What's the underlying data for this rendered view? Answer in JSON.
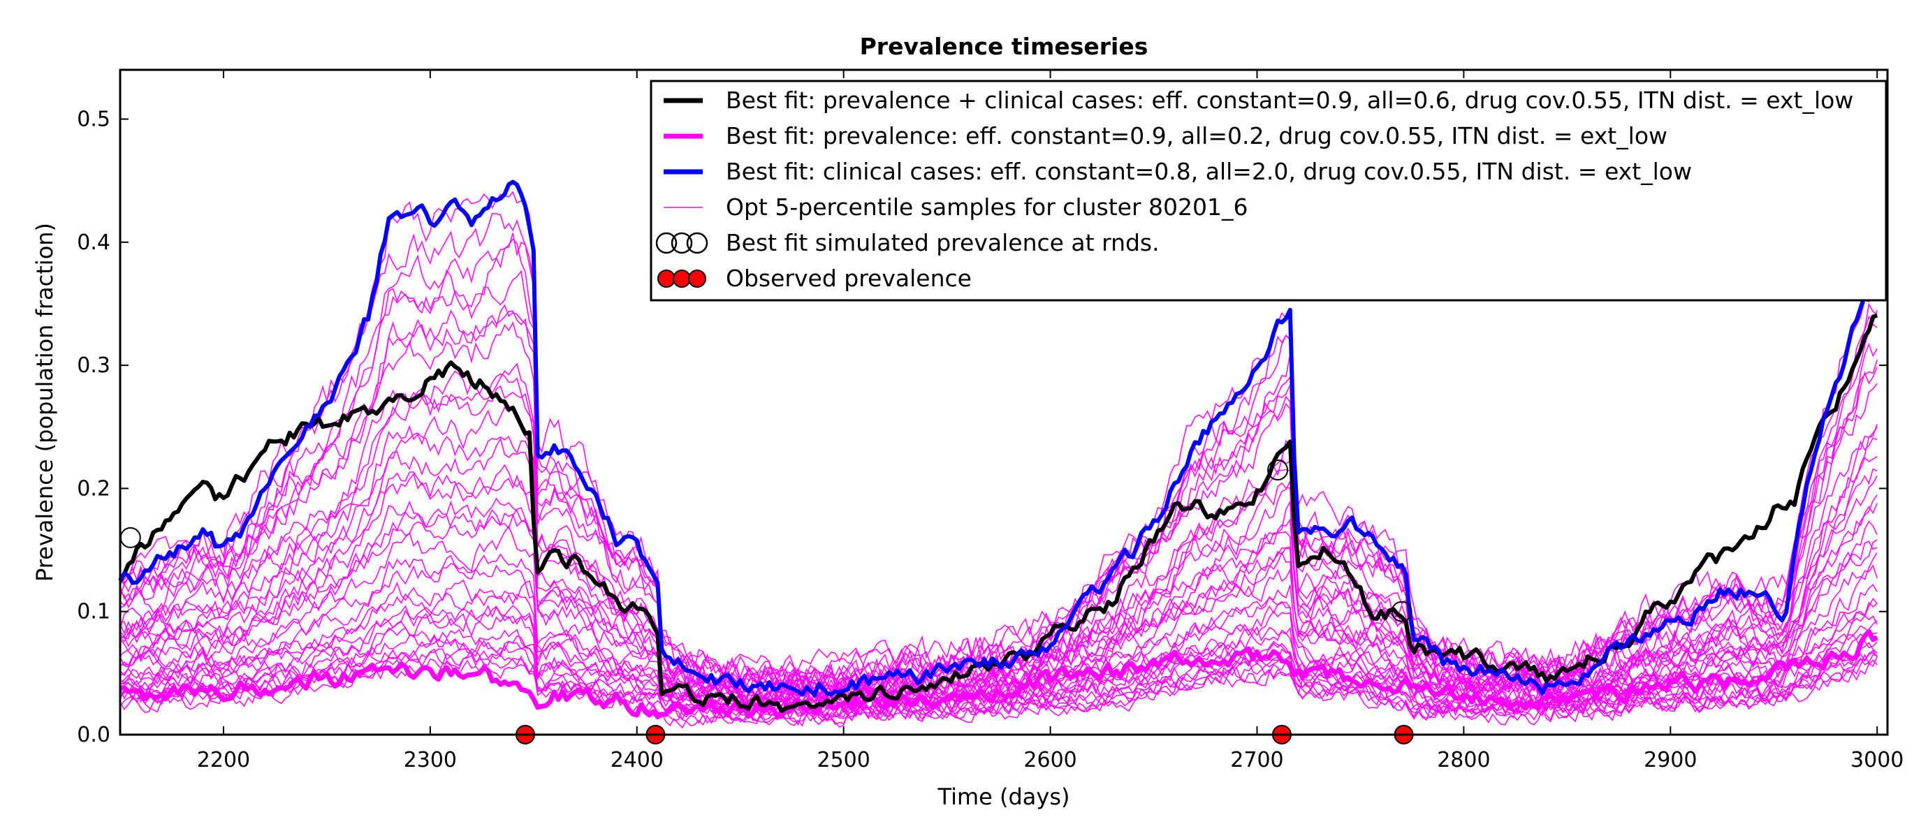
{
  "chart_data": {
    "type": "line",
    "title": "Prevalence timeseries",
    "xlabel": "Time (days)",
    "ylabel": "Prevalence (population fraction)",
    "xlim": [
      2150,
      3005
    ],
    "ylim": [
      0,
      0.54
    ],
    "xticks": [
      2200,
      2300,
      2400,
      2500,
      2600,
      2700,
      2800,
      2900,
      3000
    ],
    "yticks": [
      0.0,
      0.1,
      0.2,
      0.3,
      0.4,
      0.5
    ],
    "xtick_labels": [
      "2200",
      "2300",
      "2400",
      "2500",
      "2600",
      "2700",
      "2800",
      "2900",
      "3000"
    ],
    "ytick_labels": [
      "0.0",
      "0.1",
      "0.2",
      "0.3",
      "0.4",
      "0.5"
    ],
    "grid": false,
    "legend_position": "top-right",
    "colors": {
      "black": "#000000",
      "magenta": "#ff00ff",
      "blue": "#0000ff",
      "red": "#ff0000"
    },
    "series": [
      {
        "name": "Best fit: prevalence + clinical cases: eff. constant=0.9, all=0.6, drug cov.0.55, ITN dist. = ext_low",
        "color": "#000000",
        "role": "best_combined",
        "x": [
          2150,
          2160,
          2170,
          2180,
          2190,
          2200,
          2210,
          2220,
          2230,
          2240,
          2250,
          2260,
          2270,
          2280,
          2290,
          2300,
          2310,
          2320,
          2330,
          2340,
          2348,
          2351,
          2360,
          2370,
          2380,
          2390,
          2400,
          2410,
          2412,
          2415,
          2425,
          2440,
          2455,
          2470,
          2490,
          2510,
          2530,
          2550,
          2570,
          2590,
          2600,
          2610,
          2620,
          2630,
          2640,
          2650,
          2660,
          2670,
          2680,
          2690,
          2700,
          2710,
          2716,
          2719,
          2725,
          2735,
          2745,
          2755,
          2765,
          2772,
          2775,
          2790,
          2810,
          2830,
          2840,
          2850,
          2860,
          2870,
          2880,
          2890,
          2900,
          2910,
          2920,
          2930,
          2940,
          2950,
          2960,
          2970,
          2980,
          2990,
          3000
        ],
        "y": [
          0.13,
          0.15,
          0.17,
          0.19,
          0.2,
          0.19,
          0.21,
          0.23,
          0.24,
          0.25,
          0.25,
          0.26,
          0.26,
          0.27,
          0.28,
          0.29,
          0.3,
          0.29,
          0.28,
          0.26,
          0.24,
          0.13,
          0.15,
          0.14,
          0.12,
          0.11,
          0.1,
          0.09,
          0.035,
          0.04,
          0.03,
          0.03,
          0.03,
          0.025,
          0.025,
          0.03,
          0.04,
          0.05,
          0.055,
          0.065,
          0.08,
          0.09,
          0.1,
          0.11,
          0.14,
          0.16,
          0.18,
          0.19,
          0.18,
          0.19,
          0.2,
          0.22,
          0.23,
          0.14,
          0.14,
          0.15,
          0.13,
          0.1,
          0.1,
          0.09,
          0.07,
          0.065,
          0.06,
          0.055,
          0.05,
          0.05,
          0.06,
          0.07,
          0.08,
          0.1,
          0.11,
          0.12,
          0.14,
          0.15,
          0.16,
          0.18,
          0.19,
          0.25,
          0.27,
          0.3,
          0.34
        ]
      },
      {
        "name": "Best fit: prevalence: eff. constant=0.9, all=0.2, drug cov.0.55, ITN dist. = ext_low",
        "color": "#ff00ff",
        "role": "best_prev",
        "x": [
          2150,
          2170,
          2190,
          2210,
          2230,
          2250,
          2270,
          2290,
          2310,
          2330,
          2348,
          2351,
          2360,
          2380,
          2400,
          2412,
          2440,
          2470,
          2500,
          2530,
          2560,
          2600,
          2630,
          2660,
          2690,
          2716,
          2719,
          2750,
          2775,
          2800,
          2830,
          2860,
          2900,
          2930,
          2960,
          2980,
          3000
        ],
        "y": [
          0.035,
          0.03,
          0.035,
          0.04,
          0.04,
          0.045,
          0.05,
          0.05,
          0.05,
          0.045,
          0.04,
          0.03,
          0.035,
          0.03,
          0.025,
          0.02,
          0.02,
          0.02,
          0.025,
          0.03,
          0.035,
          0.045,
          0.05,
          0.06,
          0.065,
          0.06,
          0.05,
          0.045,
          0.035,
          0.03,
          0.03,
          0.035,
          0.04,
          0.045,
          0.055,
          0.065,
          0.08
        ]
      },
      {
        "name": "Best fit: clinical cases: eff. constant=0.8, all=2.0, drug cov.0.55, ITN dist. = ext_low",
        "color": "#0000ff",
        "role": "best_clinical",
        "x": [
          2150,
          2160,
          2170,
          2180,
          2190,
          2200,
          2210,
          2220,
          2230,
          2240,
          2250,
          2260,
          2270,
          2275,
          2280,
          2290,
          2300,
          2310,
          2320,
          2330,
          2340,
          2345,
          2350,
          2352,
          2360,
          2370,
          2380,
          2390,
          2400,
          2410,
          2412,
          2415,
          2425,
          2440,
          2455,
          2470,
          2490,
          2510,
          2530,
          2550,
          2570,
          2590,
          2610,
          2630,
          2650,
          2670,
          2690,
          2700,
          2710,
          2716,
          2719,
          2730,
          2745,
          2760,
          2772,
          2775,
          2790,
          2810,
          2830,
          2840,
          2850,
          2860,
          2870,
          2880,
          2890,
          2900,
          2910,
          2920,
          2930,
          2940,
          2955,
          2965,
          2975,
          2985,
          2995,
          3000
        ],
        "y": [
          0.12,
          0.13,
          0.14,
          0.15,
          0.16,
          0.15,
          0.17,
          0.2,
          0.23,
          0.25,
          0.27,
          0.3,
          0.34,
          0.38,
          0.42,
          0.43,
          0.42,
          0.43,
          0.42,
          0.44,
          0.45,
          0.44,
          0.4,
          0.23,
          0.24,
          0.22,
          0.2,
          0.16,
          0.15,
          0.13,
          0.07,
          0.06,
          0.05,
          0.045,
          0.04,
          0.04,
          0.04,
          0.04,
          0.045,
          0.05,
          0.055,
          0.065,
          0.09,
          0.13,
          0.17,
          0.24,
          0.27,
          0.3,
          0.33,
          0.35,
          0.17,
          0.17,
          0.17,
          0.15,
          0.13,
          0.08,
          0.06,
          0.05,
          0.045,
          0.04,
          0.045,
          0.055,
          0.065,
          0.075,
          0.085,
          0.09,
          0.1,
          0.11,
          0.12,
          0.11,
          0.1,
          0.19,
          0.26,
          0.31,
          0.36,
          0.37
        ]
      }
    ],
    "samples": {
      "name": "Opt 5-percentile samples for cluster 80201_6",
      "color": "#ff00ff",
      "count": 34
    },
    "markers_simulated": {
      "name": "Best fit simulated prevalence at rnds.",
      "x": [
        2155,
        2710,
        2770
      ],
      "y": [
        0.16,
        0.215,
        0.1
      ]
    },
    "markers_observed": {
      "name": "Observed prevalence",
      "x": [
        2346,
        2409,
        2712,
        2771
      ],
      "y": [
        0.0,
        0.0,
        0.0,
        0.0
      ]
    }
  }
}
